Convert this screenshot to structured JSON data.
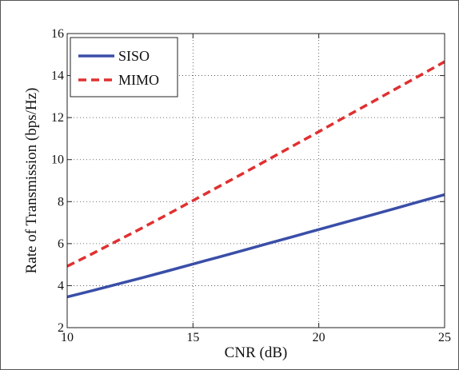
{
  "chart_data": {
    "type": "line",
    "xlabel": "CNR (dB)",
    "ylabel": "Rate of Transmission (bps/Hz)",
    "xlim": [
      10,
      25
    ],
    "ylim": [
      2,
      16
    ],
    "xticks": [
      10,
      15,
      20,
      25
    ],
    "yticks": [
      2,
      4,
      6,
      8,
      10,
      12,
      14,
      16
    ],
    "grid": true,
    "legend_position": "top-left",
    "series": [
      {
        "name": "SISO",
        "color": "#3a4ea8",
        "line_style": "solid",
        "x": [
          10,
          11,
          12,
          13,
          14,
          15,
          16,
          17,
          18,
          19,
          20,
          21,
          22,
          23,
          24,
          25
        ],
        "y": [
          3.46,
          3.76,
          4.07,
          4.38,
          4.7,
          5.03,
          5.35,
          5.68,
          6.01,
          6.34,
          6.67,
          7.0,
          7.33,
          7.66,
          8.0,
          8.33
        ]
      },
      {
        "name": "MIMO",
        "color": "#e03030",
        "line_style": "dashed",
        "x": [
          10,
          11,
          12,
          13,
          14,
          15,
          16,
          17,
          18,
          19,
          20,
          21,
          22,
          23,
          24,
          25
        ],
        "y": [
          4.92,
          5.52,
          6.14,
          6.76,
          7.4,
          8.05,
          8.7,
          9.35,
          10.01,
          10.67,
          11.33,
          12.0,
          12.66,
          13.33,
          13.99,
          14.66
        ]
      }
    ]
  }
}
